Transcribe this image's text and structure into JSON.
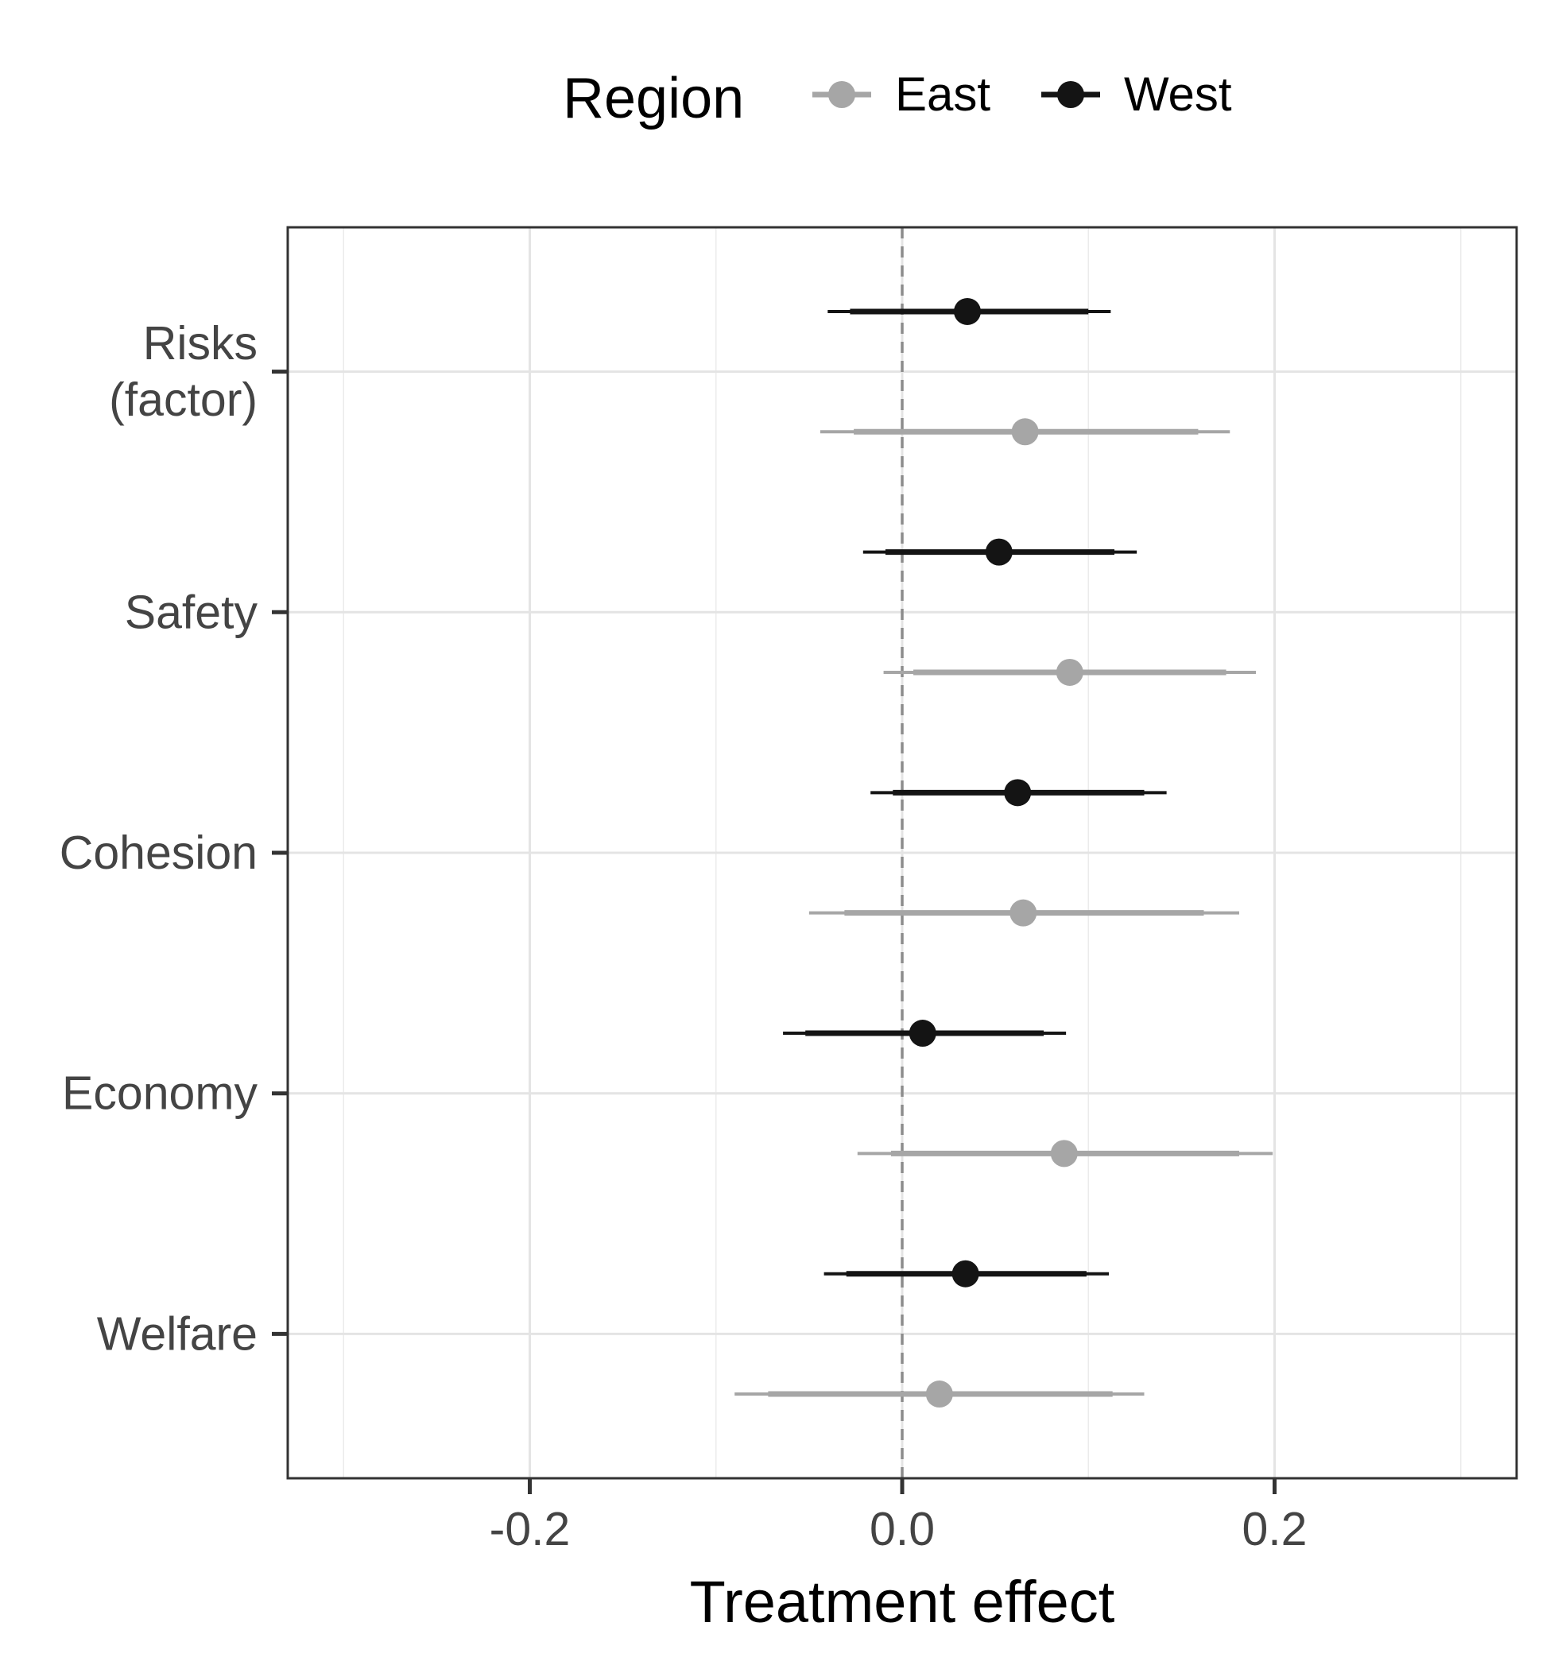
{
  "chart_data": {
    "type": "scatter",
    "xlabel": "Treatment effect",
    "ylabel": "",
    "xlim": [
      -0.33,
      0.33
    ],
    "x_ticks": [
      -0.2,
      0.0,
      0.2
    ],
    "x_tick_labels": [
      "-0.2",
      "0.0",
      "0.2"
    ],
    "categories": [
      "Risks\n(factor)",
      "Safety",
      "Cohesion",
      "Economy",
      "Welfare"
    ],
    "reference_line": {
      "x": 0.0,
      "style": "dashed"
    },
    "grid": true,
    "legend": {
      "title": "Region",
      "position": "top"
    },
    "series": [
      {
        "name": "West",
        "color": "#141414",
        "points": [
          {
            "category": "Risks\n(factor)",
            "estimate": 0.035,
            "ci_inner": [
              -0.028,
              0.1
            ],
            "ci_outer": [
              -0.04,
              0.112
            ]
          },
          {
            "category": "Safety",
            "estimate": 0.052,
            "ci_inner": [
              -0.009,
              0.114
            ],
            "ci_outer": [
              -0.021,
              0.126
            ]
          },
          {
            "category": "Cohesion",
            "estimate": 0.062,
            "ci_inner": [
              -0.005,
              0.13
            ],
            "ci_outer": [
              -0.017,
              0.142
            ]
          },
          {
            "category": "Economy",
            "estimate": 0.011,
            "ci_inner": [
              -0.052,
              0.076
            ],
            "ci_outer": [
              -0.064,
              0.088
            ]
          },
          {
            "category": "Welfare",
            "estimate": 0.034,
            "ci_inner": [
              -0.03,
              0.099
            ],
            "ci_outer": [
              -0.042,
              0.111
            ]
          }
        ]
      },
      {
        "name": "East",
        "color": "#a6a6a6",
        "points": [
          {
            "category": "Risks\n(factor)",
            "estimate": 0.066,
            "ci_inner": [
              -0.026,
              0.159
            ],
            "ci_outer": [
              -0.044,
              0.176
            ]
          },
          {
            "category": "Safety",
            "estimate": 0.09,
            "ci_inner": [
              0.006,
              0.174
            ],
            "ci_outer": [
              -0.01,
              0.19
            ]
          },
          {
            "category": "Cohesion",
            "estimate": 0.065,
            "ci_inner": [
              -0.031,
              0.162
            ],
            "ci_outer": [
              -0.05,
              0.181
            ]
          },
          {
            "category": "Economy",
            "estimate": 0.087,
            "ci_inner": [
              -0.006,
              0.181
            ],
            "ci_outer": [
              -0.024,
              0.199
            ]
          },
          {
            "category": "Welfare",
            "estimate": 0.02,
            "ci_inner": [
              -0.072,
              0.113
            ],
            "ci_outer": [
              -0.09,
              0.13
            ]
          }
        ]
      }
    ]
  }
}
